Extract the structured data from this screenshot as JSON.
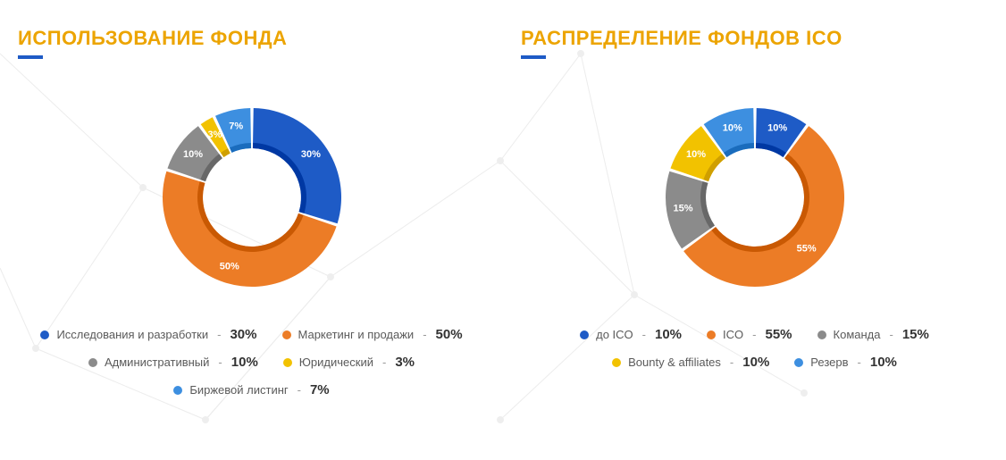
{
  "left": {
    "title": "ИСПОЛЬЗОВАНИЕ ФОНДА",
    "chart": {
      "type": "donut",
      "outer_radius": 100,
      "inner_radius": 55,
      "start_angle_deg": -90,
      "background": "#ffffff",
      "slices": [
        {
          "label": "Исследования и разработки",
          "value": 30,
          "color": "#1e5bc6",
          "pct_text": "30%"
        },
        {
          "label": "Маркетинг и продажи",
          "value": 50,
          "color": "#ec7c26",
          "pct_text": "50%"
        },
        {
          "label": "Административный",
          "value": 10,
          "color": "#8b8b8b",
          "pct_text": "10%"
        },
        {
          "label": "Юридический",
          "value": 3,
          "color": "#f2c200",
          "pct_text": "3%"
        },
        {
          "label": "Биржевой листинг",
          "value": 7,
          "color": "#3d8fe0",
          "pct_text": "7%"
        }
      ]
    }
  },
  "right": {
    "title": "РАСПРЕДЕЛЕНИЕ ФОНДОВ ICO",
    "chart": {
      "type": "donut",
      "outer_radius": 100,
      "inner_radius": 55,
      "start_angle_deg": -90,
      "background": "#ffffff",
      "slices": [
        {
          "label": "до ICO",
          "value": 10,
          "color": "#1e5bc6",
          "pct_text": "10%"
        },
        {
          "label": "ICO",
          "value": 55,
          "color": "#ec7c26",
          "pct_text": "55%"
        },
        {
          "label": "Команда",
          "value": 15,
          "color": "#8b8b8b",
          "pct_text": "15%"
        },
        {
          "label": "Bounty & affiliates",
          "value": 10,
          "color": "#f2c200",
          "pct_text": "10%"
        },
        {
          "label": "Резерв",
          "value": 10,
          "color": "#3d8fe0",
          "pct_text": "10%"
        }
      ]
    }
  },
  "palette": {
    "title_color": "#eca400",
    "underline_color": "#1e5bc6"
  }
}
